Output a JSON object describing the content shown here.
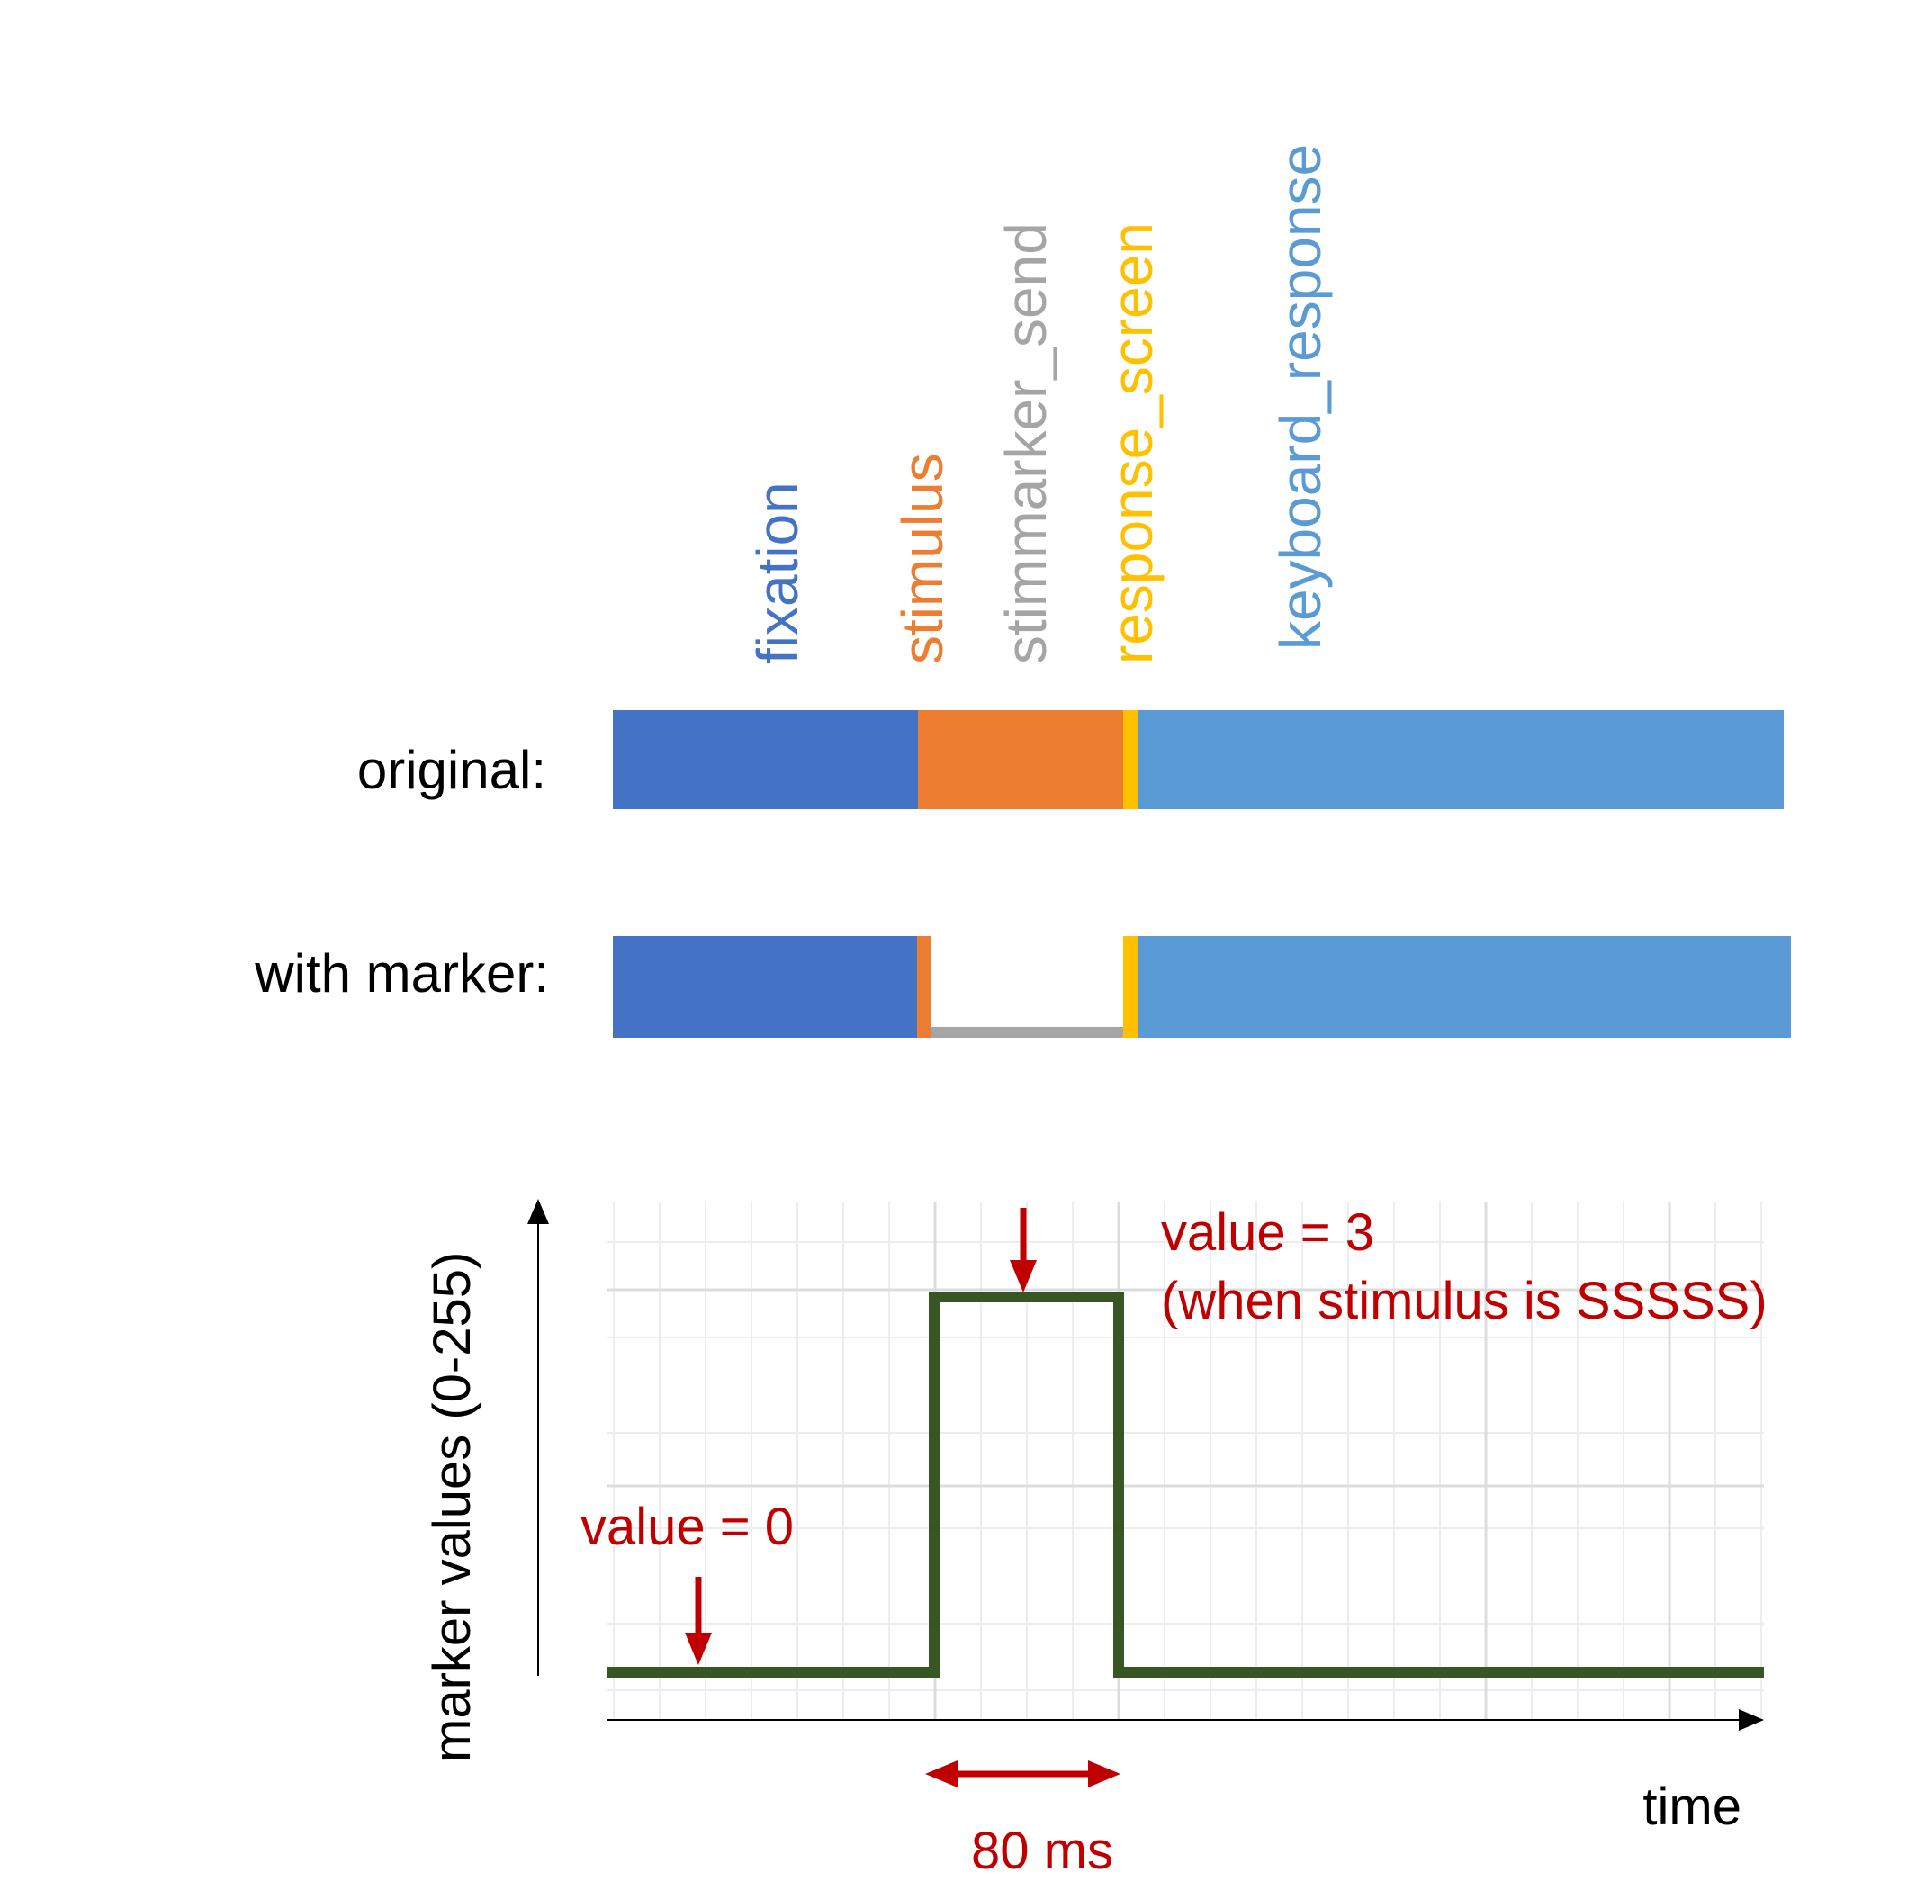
{
  "phase_labels": [
    {
      "text": "fixation",
      "color": "#4472C4"
    },
    {
      "text": "stimulus",
      "color": "#ED7D31"
    },
    {
      "text": "stimmarker_send",
      "color": "#A5A5A5"
    },
    {
      "text": "response_screen",
      "color": "#FFC000"
    },
    {
      "text": "keyboard_response",
      "color": "#5B9BD5"
    }
  ],
  "rows": {
    "original_label": "original:",
    "marker_label": "with marker:"
  },
  "colors": {
    "fixation": "#4472C4",
    "stimulus": "#ED7D31",
    "stimmarker_send": "#A5A5A5",
    "response_screen": "#FFC000",
    "keyboard_response": "#5B9BD5",
    "signal": "#375623",
    "annotation": "#C00000"
  },
  "plot": {
    "ylabel": "marker values (0-255)",
    "xlabel": "time",
    "annotation_low": "value = 0",
    "annotation_high_line1": "value = 3",
    "annotation_high_line2": "(when stimulus is SSSSS)",
    "duration_label": "80 ms"
  },
  "chart_data": {
    "type": "line",
    "title": "",
    "xlabel": "time",
    "ylabel": "marker values (0-255)",
    "series": [
      {
        "x": [
          0,
          0,
          80,
          80
        ],
        "values": [
          0,
          3,
          3,
          0
        ]
      }
    ],
    "grid": true
  }
}
